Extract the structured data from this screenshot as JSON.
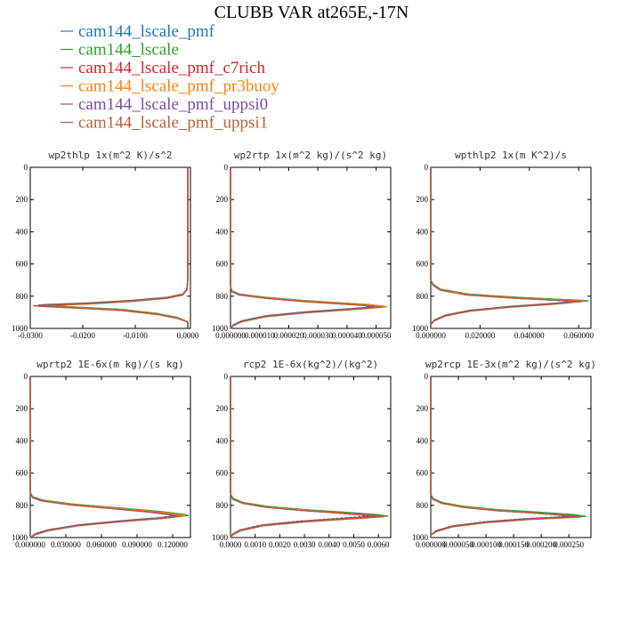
{
  "title": "CLUBB VAR at265E,-17N",
  "legend": [
    {
      "label": "cam144_lscale_pmf",
      "color": "#1f77b4"
    },
    {
      "label": "cam144_lscale",
      "color": "#2ca02c"
    },
    {
      "label": "cam144_lscale_pmf_c7rich",
      "color": "#d62728"
    },
    {
      "label": "cam144_lscale_pmf_pr3buoy",
      "color": "#ff7f0e"
    },
    {
      "label": "cam144_lscale_pmf_uppsi0",
      "color": "#7b4fa3"
    },
    {
      "label": "cam144_lscale_pmf_uppsi1",
      "color": "#b5603a"
    }
  ],
  "chart_data": [
    {
      "type": "line",
      "title": "wp2thlp  1x(m^2 K)/s^2",
      "xlim": [
        -0.03,
        0.0005
      ],
      "ylim": [
        1000,
        0
      ],
      "y_ticks": [
        "0",
        "200",
        "400",
        "600",
        "800",
        "1000"
      ],
      "x_ticks": [
        {
          "v": -0.03,
          "label": "-0.0300"
        },
        {
          "v": -0.02,
          "label": "-0.0200"
        },
        {
          "v": -0.01,
          "label": "-0.0100"
        },
        {
          "v": 0.0,
          "label": "0.0000"
        }
      ],
      "base_profile": [
        [
          0,
          0
        ],
        [
          700,
          0
        ],
        [
          760,
          -0.0002
        ],
        [
          790,
          -0.001
        ],
        [
          810,
          -0.004
        ],
        [
          830,
          -0.011
        ],
        [
          845,
          -0.019
        ],
        [
          850,
          -0.023
        ],
        [
          855,
          -0.027
        ],
        [
          860,
          -0.0285
        ],
        [
          870,
          -0.022
        ],
        [
          885,
          -0.013
        ],
        [
          910,
          -0.006
        ],
        [
          935,
          -0.002
        ],
        [
          960,
          0
        ],
        [
          1000,
          0
        ]
      ],
      "series_scale": [
        1.0,
        0.95,
        1.03,
        0.97,
        1.0,
        0.99
      ]
    },
    {
      "type": "line",
      "title": "wp2rtp  1x(m^2 kg)/(s^2 kg)",
      "xlim": [
        0.0,
        5.5e-05
      ],
      "ylim": [
        1000,
        0
      ],
      "y_ticks": [
        "0",
        "200",
        "400",
        "600",
        "800",
        "1000"
      ],
      "x_ticks": [
        {
          "v": 0.0,
          "label": "0.000000"
        },
        {
          "v": 1e-05,
          "label": "0.000010"
        },
        {
          "v": 2e-05,
          "label": "0.000020"
        },
        {
          "v": 3e-05,
          "label": "0.000030"
        },
        {
          "v": 4e-05,
          "label": "0.000040"
        },
        {
          "v": 5e-05,
          "label": "0.000050"
        }
      ],
      "base_profile": [
        [
          0,
          0
        ],
        [
          740,
          0
        ],
        [
          770,
          5e-07
        ],
        [
          790,
          3e-06
        ],
        [
          810,
          1.2e-05
        ],
        [
          830,
          2.5e-05
        ],
        [
          845,
          3.8e-05
        ],
        [
          855,
          4.7e-05
        ],
        [
          865,
          5.2e-05
        ],
        [
          880,
          4.2e-05
        ],
        [
          900,
          2.6e-05
        ],
        [
          925,
          1.2e-05
        ],
        [
          955,
          4e-06
        ],
        [
          980,
          1e-06
        ],
        [
          1000,
          0
        ]
      ],
      "series_scale": [
        1.0,
        1.02,
        0.98,
        1.03,
        0.96,
        1.0
      ]
    },
    {
      "type": "line",
      "title": "wpthlp2  1x(m K^2)/s",
      "xlim": [
        0.0,
        0.065
      ],
      "ylim": [
        1000,
        0
      ],
      "y_ticks": [
        "0",
        "200",
        "400",
        "600",
        "800",
        "1000"
      ],
      "x_ticks": [
        {
          "v": 0.0,
          "label": "0.000000"
        },
        {
          "v": 0.02,
          "label": "0.020000"
        },
        {
          "v": 0.04,
          "label": "0.040000"
        },
        {
          "v": 0.06,
          "label": "0.060000"
        }
      ],
      "base_profile": [
        [
          0,
          0
        ],
        [
          700,
          0
        ],
        [
          730,
          0.001
        ],
        [
          760,
          0.004
        ],
        [
          790,
          0.015
        ],
        [
          810,
          0.035
        ],
        [
          825,
          0.055
        ],
        [
          830,
          0.062
        ],
        [
          845,
          0.052
        ],
        [
          865,
          0.033
        ],
        [
          890,
          0.016
        ],
        [
          920,
          0.006
        ],
        [
          950,
          0.0015
        ],
        [
          975,
          0
        ],
        [
          1000,
          0
        ]
      ],
      "series_scale": [
        1.0,
        1.03,
        0.97,
        1.0,
        0.95,
        0.99
      ]
    },
    {
      "type": "line",
      "title": "wprtp2  1E-6x(m kg)/(s kg)",
      "xlim": [
        0.0,
        0.135
      ],
      "ylim": [
        1000,
        0
      ],
      "y_ticks": [
        "0",
        "200",
        "400",
        "600",
        "800",
        "1000"
      ],
      "x_ticks": [
        {
          "v": 0.0,
          "label": "0.000000"
        },
        {
          "v": 0.03,
          "label": "0.030000"
        },
        {
          "v": 0.06,
          "label": "0.060000"
        },
        {
          "v": 0.09,
          "label": "0.090000"
        },
        {
          "v": 0.12,
          "label": "0.120000"
        }
      ],
      "base_profile": [
        [
          0,
          0
        ],
        [
          720,
          0
        ],
        [
          750,
          0.002
        ],
        [
          770,
          0.01
        ],
        [
          795,
          0.035
        ],
        [
          820,
          0.075
        ],
        [
          840,
          0.105
        ],
        [
          855,
          0.122
        ],
        [
          865,
          0.128
        ],
        [
          880,
          0.11
        ],
        [
          900,
          0.075
        ],
        [
          925,
          0.04
        ],
        [
          955,
          0.015
        ],
        [
          980,
          0.004
        ],
        [
          1000,
          0
        ]
      ],
      "series_scale": [
        1.0,
        1.04,
        0.96,
        1.02,
        0.95,
        0.99
      ]
    },
    {
      "type": "line",
      "title": "rcp2  1E-6x(kg^2)/(kg^2)",
      "xlim": [
        0.0,
        0.0065
      ],
      "ylim": [
        1000,
        0
      ],
      "y_ticks": [
        "0",
        "200",
        "400",
        "600",
        "800",
        "1000"
      ],
      "x_ticks": [
        {
          "v": 0.0,
          "label": "0.0000"
        },
        {
          "v": 0.001,
          "label": "0.0010"
        },
        {
          "v": 0.002,
          "label": "0.0020"
        },
        {
          "v": 0.003,
          "label": "0.0030"
        },
        {
          "v": 0.004,
          "label": "0.0040"
        },
        {
          "v": 0.005,
          "label": "0.0050"
        },
        {
          "v": 0.006,
          "label": "0.0060"
        }
      ],
      "base_profile": [
        [
          0,
          0
        ],
        [
          730,
          0
        ],
        [
          760,
          0.0001
        ],
        [
          785,
          0.0005
        ],
        [
          810,
          0.0015
        ],
        [
          830,
          0.003
        ],
        [
          845,
          0.0045
        ],
        [
          860,
          0.0058
        ],
        [
          868,
          0.0062
        ],
        [
          880,
          0.005
        ],
        [
          900,
          0.003
        ],
        [
          925,
          0.0013
        ],
        [
          955,
          0.0004
        ],
        [
          980,
          0.0001
        ],
        [
          1000,
          0
        ]
      ],
      "series_scale": [
        1.0,
        1.03,
        0.9,
        0.98,
        0.96,
        1.0
      ]
    },
    {
      "type": "line",
      "title": "wp2rcp  1E-3x(m^2 kg)/(s^2 kg)",
      "xlim": [
        0.0,
        0.00029
      ],
      "ylim": [
        1000,
        0
      ],
      "y_ticks": [
        "0",
        "200",
        "400",
        "600",
        "800",
        "1000"
      ],
      "x_ticks": [
        {
          "v": 0.0,
          "label": "0.000000"
        },
        {
          "v": 5e-05,
          "label": "0.000050"
        },
        {
          "v": 0.0001,
          "label": "0.000100"
        },
        {
          "v": 0.00015,
          "label": "0.000150"
        },
        {
          "v": 0.0002,
          "label": "0.000200"
        },
        {
          "v": 0.00025,
          "label": "0.000250"
        }
      ],
      "base_profile": [
        [
          0,
          0
        ],
        [
          730,
          0
        ],
        [
          760,
          4e-06
        ],
        [
          785,
          2e-05
        ],
        [
          810,
          6e-05
        ],
        [
          830,
          0.00012
        ],
        [
          845,
          0.00019
        ],
        [
          860,
          0.00025
        ],
        [
          870,
          0.00027
        ],
        [
          885,
          0.00018
        ],
        [
          905,
          0.0001
        ],
        [
          930,
          4e-05
        ],
        [
          960,
          1e-05
        ],
        [
          985,
          0
        ],
        [
          1000,
          0
        ]
      ],
      "series_scale": [
        1.0,
        1.04,
        0.92,
        0.98,
        0.96,
        1.0
      ]
    }
  ]
}
